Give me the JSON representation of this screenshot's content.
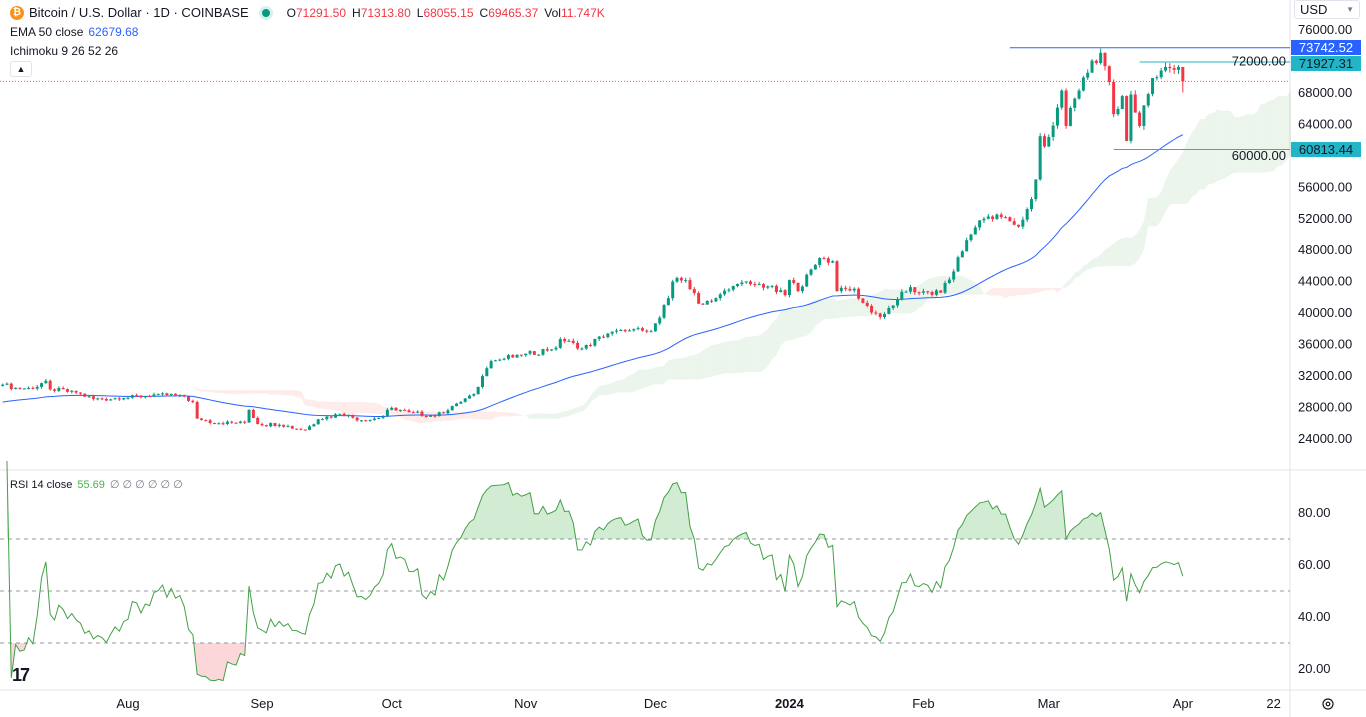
{
  "header": {
    "symbol_icon": "bitcoin-icon",
    "title": "Bitcoin / U.S. Dollar · 1D · COINBASE",
    "ohlc": [
      {
        "k": "O",
        "v": "71291.50"
      },
      {
        "k": "H",
        "v": "71313.80"
      },
      {
        "k": "L",
        "v": "68055.15"
      },
      {
        "k": "C",
        "v": "69465.37"
      },
      {
        "k": "Vol",
        "v": "11.747K"
      }
    ],
    "collapse_icon": "chevron-up-icon"
  },
  "indicators": {
    "ema": {
      "label": "EMA 50 close",
      "value": "62679.68"
    },
    "ichimoku": {
      "label": "Ichimoku 9 26 52 26"
    },
    "rsi": {
      "label": "RSI 14 close",
      "value": "55.69",
      "extra": "∅ ∅ ∅ ∅ ∅ ∅"
    }
  },
  "currency": "USD",
  "price_tags": [
    {
      "value": "73742.52",
      "color": "#2962ff",
      "text_color": "#ffffff"
    },
    {
      "value": "71927.31",
      "color": "#22b5c8",
      "text_color": "#131722"
    },
    {
      "value": "60813.44",
      "color": "#22b5c8",
      "text_color": "#131722"
    }
  ],
  "logo": "TV",
  "settings_icon": "gear-icon",
  "colors": {
    "up": "#089981",
    "down": "#f23645",
    "ema": "#2962ff",
    "rsi": "#4caf50",
    "cloud_up": "#43a047",
    "cloud_down": "#f44336",
    "last_price": "#f7525f"
  },
  "chart_data": {
    "type": "candlestick",
    "title": "Bitcoin / U.S. Dollar · 1D · COINBASE",
    "price_axis": {
      "ticks": [
        "76000.00",
        "72000.00",
        "68000.00",
        "64000.00",
        "60000.00",
        "56000.00",
        "52000.00",
        "48000.00",
        "44000.00",
        "40000.00",
        "36000.00",
        "32000.00",
        "28000.00",
        "24000.00"
      ],
      "ylim": [
        24000,
        76000
      ]
    },
    "rsi_axis": {
      "ticks": [
        "80.00",
        "60.00",
        "40.00",
        "20.00"
      ],
      "levels": [
        70,
        50,
        30
      ]
    },
    "time_axis": [
      {
        "label": "Aug",
        "date": "2023-08-01"
      },
      {
        "label": "Sep",
        "date": "2023-09-01"
      },
      {
        "label": "Oct",
        "date": "2023-10-01"
      },
      {
        "label": "Nov",
        "date": "2023-11-01"
      },
      {
        "label": "Dec",
        "date": "2023-12-01"
      },
      {
        "label": "2024",
        "date": "2024-01-01",
        "bold": true
      },
      {
        "label": "Feb",
        "date": "2024-02-01"
      },
      {
        "label": "Mar",
        "date": "2024-03-01"
      },
      {
        "label": "Apr",
        "date": "2024-04-01"
      },
      {
        "label": "22",
        "date": "2024-04-22"
      }
    ],
    "last_candle": {
      "date": "2024-04-01",
      "open": 71291.5,
      "high": 71313.8,
      "low": 68055.15,
      "close": 69465.37
    },
    "horizontal_lines": [
      {
        "value": 73742.52,
        "from": "2024-02-21"
      },
      {
        "value": 71927.31,
        "from": "2024-03-22"
      },
      {
        "value": 60813.44,
        "from": "2024-03-16"
      }
    ],
    "ema_last": 62679.68,
    "rsi_last": 55.69,
    "closes_approx": [
      [
        "2023-07-03",
        30900
      ],
      [
        "2023-07-06",
        30500
      ],
      [
        "2023-07-10",
        30400
      ],
      [
        "2023-07-13",
        31400
      ],
      [
        "2023-07-14",
        30300
      ],
      [
        "2023-07-20",
        29900
      ],
      [
        "2023-07-24",
        29100
      ],
      [
        "2023-07-31",
        29200
      ],
      [
        "2023-08-08",
        29700
      ],
      [
        "2023-08-14",
        29400
      ],
      [
        "2023-08-16",
        28700
      ],
      [
        "2023-08-17",
        26600
      ],
      [
        "2023-08-22",
        26000
      ],
      [
        "2023-08-28",
        26100
      ],
      [
        "2023-08-29",
        27700
      ],
      [
        "2023-08-31",
        25900
      ],
      [
        "2023-09-05",
        25800
      ],
      [
        "2023-09-11",
        25150
      ],
      [
        "2023-09-14",
        26500
      ],
      [
        "2023-09-19",
        27200
      ],
      [
        "2023-09-25",
        26300
      ],
      [
        "2023-09-29",
        26900
      ],
      [
        "2023-10-01",
        27950
      ],
      [
        "2023-10-05",
        27400
      ],
      [
        "2023-10-11",
        26900
      ],
      [
        "2023-10-16",
        28500
      ],
      [
        "2023-10-20",
        29700
      ],
      [
        "2023-10-23",
        33000
      ],
      [
        "2023-10-24",
        33900
      ],
      [
        "2023-10-31",
        34650
      ],
      [
        "2023-11-08",
        35600
      ],
      [
        "2023-11-09",
        36700
      ],
      [
        "2023-11-14",
        35500
      ],
      [
        "2023-11-20",
        37400
      ],
      [
        "2023-11-24",
        37700
      ],
      [
        "2023-11-30",
        37700
      ],
      [
        "2023-12-01",
        38700
      ],
      [
        "2023-12-04",
        41900
      ],
      [
        "2023-12-05",
        44000
      ],
      [
        "2023-12-08",
        44200
      ],
      [
        "2023-12-11",
        41200
      ],
      [
        "2023-12-15",
        41900
      ],
      [
        "2023-12-20",
        43700
      ],
      [
        "2023-12-23",
        43700
      ],
      [
        "2023-12-27",
        43400
      ],
      [
        "2023-12-31",
        42300
      ],
      [
        "2024-01-01",
        44200
      ],
      [
        "2024-01-03",
        42800
      ],
      [
        "2024-01-08",
        47000
      ],
      [
        "2024-01-11",
        46600
      ],
      [
        "2024-01-12",
        42800
      ],
      [
        "2024-01-16",
        43100
      ],
      [
        "2024-01-18",
        41300
      ],
      [
        "2024-01-22",
        39500
      ],
      [
        "2024-01-23",
        39900
      ],
      [
        "2024-01-26",
        41800
      ],
      [
        "2024-01-29",
        43300
      ],
      [
        "2024-01-31",
        42600
      ],
      [
        "2024-02-05",
        42600
      ],
      [
        "2024-02-08",
        45300
      ],
      [
        "2024-02-09",
        47100
      ],
      [
        "2024-02-12",
        50000
      ],
      [
        "2024-02-14",
        51800
      ],
      [
        "2024-02-15",
        52000
      ],
      [
        "2024-02-20",
        52200
      ],
      [
        "2024-02-23",
        51000
      ],
      [
        "2024-02-26",
        54500
      ],
      [
        "2024-02-27",
        57000
      ],
      [
        "2024-02-28",
        62500
      ],
      [
        "2024-02-29",
        61200
      ],
      [
        "2024-03-01",
        62400
      ],
      [
        "2024-03-04",
        68300
      ],
      [
        "2024-03-05",
        63800
      ],
      [
        "2024-03-06",
        66100
      ],
      [
        "2024-03-08",
        68300
      ],
      [
        "2024-03-11",
        72100
      ],
      [
        "2024-03-13",
        73100
      ],
      [
        "2024-03-14",
        71400
      ],
      [
        "2024-03-15",
        69400
      ],
      [
        "2024-03-16",
        65300
      ],
      [
        "2024-03-18",
        67600
      ],
      [
        "2024-03-19",
        61900
      ],
      [
        "2024-03-20",
        67800
      ],
      [
        "2024-03-21",
        65500
      ],
      [
        "2024-03-22",
        63800
      ],
      [
        "2024-03-25",
        69900
      ],
      [
        "2024-03-26",
        70000
      ],
      [
        "2024-03-28",
        71300
      ],
      [
        "2024-03-31",
        71300
      ],
      [
        "2024-04-01",
        69465.37
      ]
    ]
  }
}
